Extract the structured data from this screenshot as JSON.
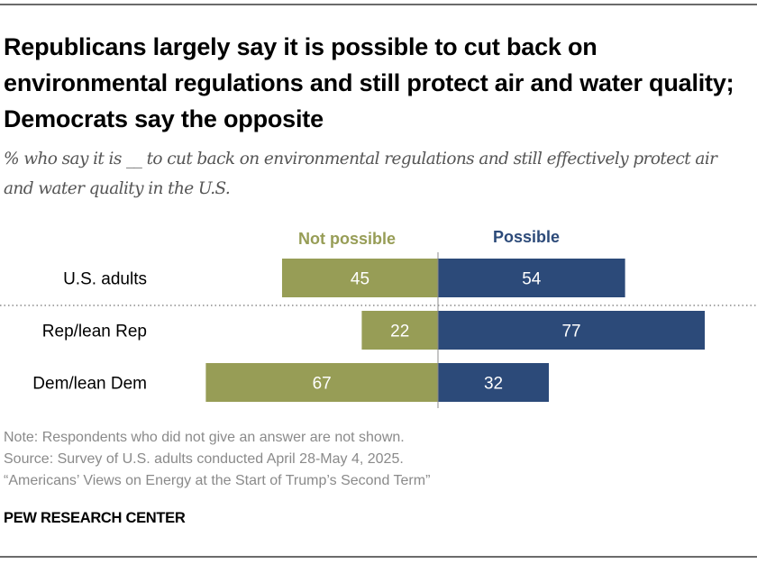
{
  "header": {
    "title": "Republicans largely say it is possible to cut back on environmental regulations and still protect air and water quality; Democrats say the opposite",
    "subtitle": "% who say it is __ to cut back on environmental regulations and still effectively protect air and water quality in the U.S."
  },
  "chart_data": {
    "type": "bar",
    "orientation": "horizontal-diverging",
    "title": "Republicans largely say it is possible to cut back on environmental regulations and still protect air and water quality; Democrats say the opposite",
    "subtitle": "% who say it is __ to cut back on environmental regulations and still effectively protect air and water quality in the U.S.",
    "xlabel": "",
    "ylabel": "",
    "categories": [
      "U.S. adults",
      "Rep/lean Rep",
      "Dem/lean Dem"
    ],
    "series": [
      {
        "name": "Not possible",
        "values": [
          45,
          22,
          67
        ],
        "color": "#979d56",
        "direction": "left"
      },
      {
        "name": "Possible",
        "values": [
          54,
          77,
          32
        ],
        "color": "#2c4a79",
        "direction": "right"
      }
    ],
    "xlim": [
      0,
      100
    ],
    "grid": false,
    "legend": "top",
    "separator_after_category": 0
  },
  "footer": {
    "note": "Note: Respondents who did not give an answer are not shown.",
    "source": "Source: Survey of U.S. adults conducted April 28-May 4, 2025.",
    "report": "“Americans’ Views on Energy at the Start of Trump’s Second Term”",
    "brand": "PEW RESEARCH CENTER"
  }
}
